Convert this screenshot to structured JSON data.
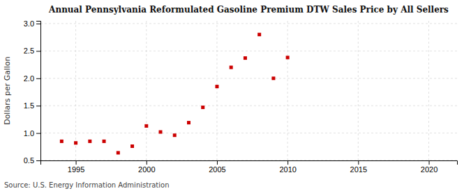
{
  "chart_data": {
    "type": "scatter",
    "title": "Annual Pennsylvania Reformulated Gasoline Premium DTW Sales Price by All Sellers",
    "ylabel": "Dollars per Gallon",
    "annotations": [
      "Source: U.S. Energy Information Administration"
    ],
    "x": [
      1994,
      1995,
      1996,
      1997,
      1998,
      1999,
      2000,
      2001,
      2002,
      2003,
      2004,
      2005,
      2006,
      2007,
      2008,
      2009,
      2010
    ],
    "values": [
      0.85,
      0.82,
      0.85,
      0.85,
      0.64,
      0.76,
      1.13,
      1.02,
      0.96,
      1.19,
      1.47,
      1.85,
      2.2,
      2.37,
      2.8,
      2.0,
      2.38
    ],
    "color": "#cc0000",
    "marker": "square",
    "xlim": [
      1992.5,
      2022
    ],
    "ylim": [
      0.5,
      3.05
    ],
    "xticks": [
      1995,
      2000,
      2005,
      2010,
      2015,
      2020
    ],
    "yticks": [
      0.5,
      {
        "value": 1.0,
        "label": "1.0"
      },
      1.5,
      {
        "value": 2.0,
        "label": "2.0"
      },
      2.5,
      {
        "value": 3.0,
        "label": "3.0"
      }
    ],
    "grid": true
  }
}
